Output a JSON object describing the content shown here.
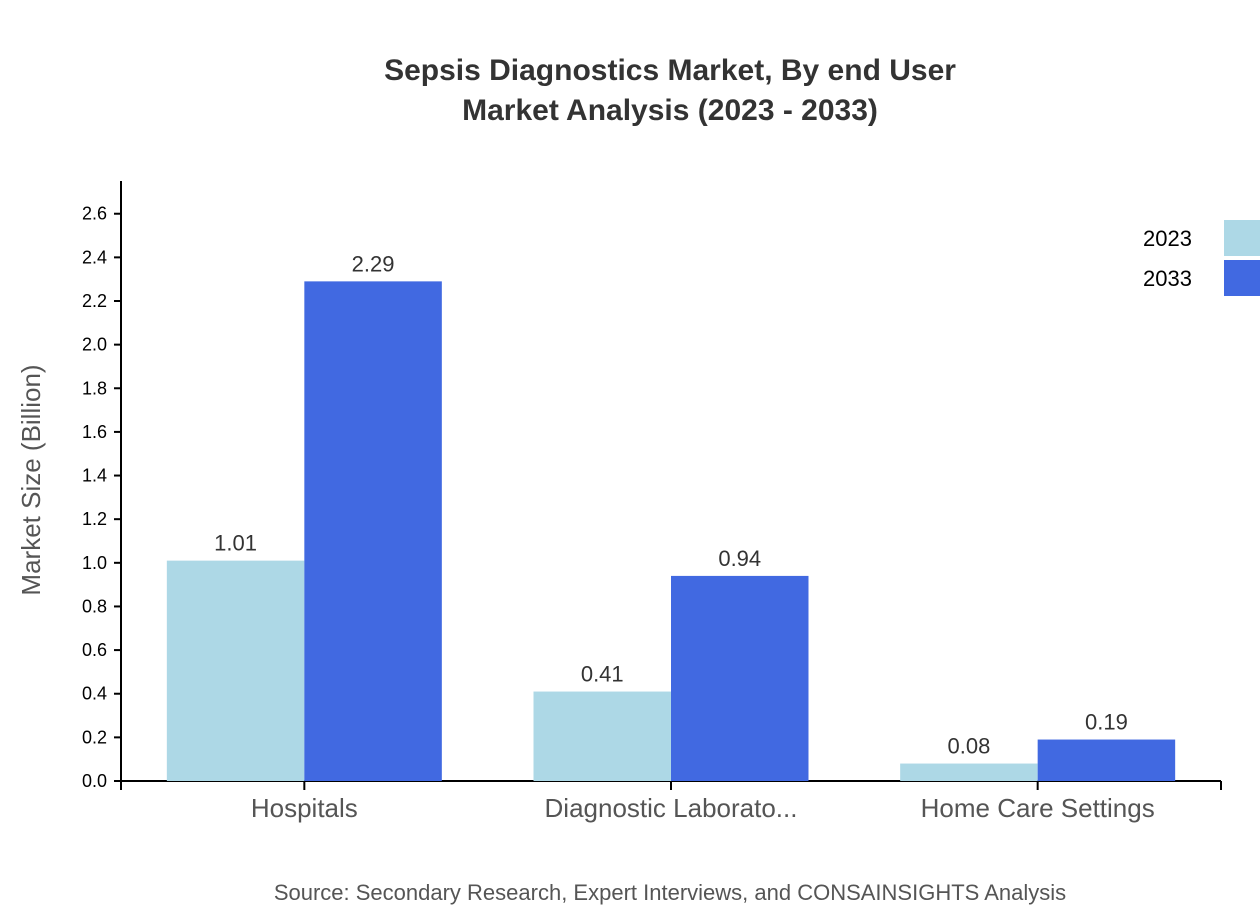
{
  "chart_data": {
    "type": "bar",
    "title": "Sepsis Diagnostics Market, By end User",
    "subtitle": "Market Analysis (2023 - 2033)",
    "ylabel": "Market Size (Billion)",
    "xlabel": "",
    "ylim": [
      0,
      2.75
    ],
    "yticks": [
      "0.0",
      "0.2",
      "0.4",
      "0.6",
      "0.8",
      "1.0",
      "1.2",
      "1.4",
      "1.6",
      "1.8",
      "2.0",
      "2.2",
      "2.4",
      "2.6"
    ],
    "categories": [
      "Hospitals",
      "Diagnostic Laborato...",
      "Home Care Settings"
    ],
    "series": [
      {
        "name": "2023",
        "values": [
          1.01,
          0.41,
          0.08
        ],
        "color": "#add8e6"
      },
      {
        "name": "2033",
        "values": [
          2.29,
          0.94,
          0.19
        ],
        "color": "#4169e1"
      }
    ],
    "grid": false,
    "legend": "top-right",
    "source": "Source: Secondary Research, Expert Interviews, and CONSAINSIGHTS Analysis"
  }
}
